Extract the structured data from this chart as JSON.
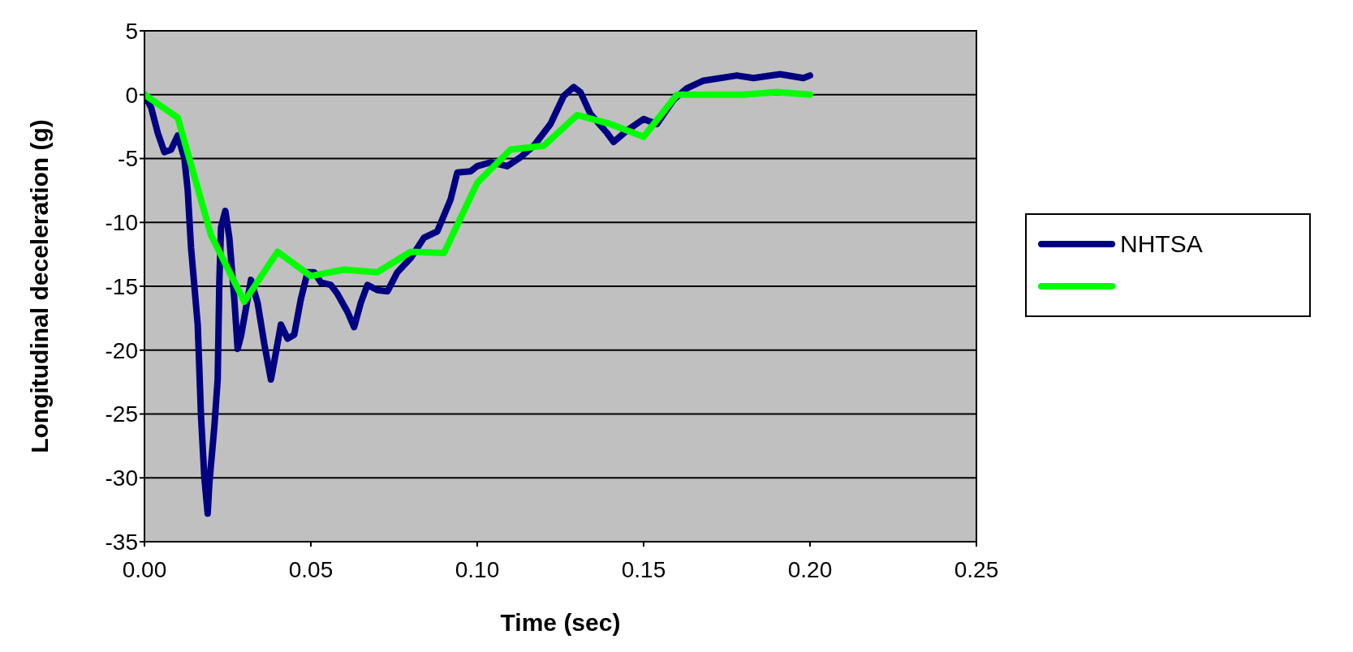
{
  "chart_data": {
    "type": "line",
    "xlabel": "Time (sec)",
    "ylabel": "Longitudinal deceleration (g)",
    "xlim": [
      0,
      0.25
    ],
    "xticks": [
      {
        "value": 0,
        "label": "0.00"
      },
      {
        "value": 0.05,
        "label": "0.05"
      },
      {
        "value": 0.1,
        "label": "0.10"
      },
      {
        "value": 0.15,
        "label": "0.15"
      },
      {
        "value": 0.2,
        "label": "0.20"
      },
      {
        "value": 0.25,
        "label": "0.25"
      }
    ],
    "ylim": [
      -35,
      5
    ],
    "yticks": [
      -35,
      -30,
      -25,
      -20,
      -15,
      -10,
      -5,
      0,
      5
    ],
    "grid": "y",
    "legend": "right",
    "marker": "none",
    "line_style": "solid",
    "series": [
      {
        "name": "NHTSA",
        "color": "#000080",
        "x": [
          0,
          0.002,
          0.004,
          0.006,
          0.008,
          0.01,
          0.012,
          0.013,
          0.014,
          0.016,
          0.017,
          0.018,
          0.019,
          0.0195,
          0.021,
          0.022,
          0.0225,
          0.023,
          0.0243,
          0.0255,
          0.027,
          0.028,
          0.029,
          0.031,
          0.032,
          0.034,
          0.036,
          0.038,
          0.039,
          0.041,
          0.043,
          0.045,
          0.047,
          0.049,
          0.051,
          0.053,
          0.056,
          0.058,
          0.061,
          0.063,
          0.065,
          0.067,
          0.07,
          0.073,
          0.076,
          0.08,
          0.084,
          0.088,
          0.092,
          0.094,
          0.098,
          0.1,
          0.104,
          0.109,
          0.113,
          0.117,
          0.122,
          0.126,
          0.129,
          0.131,
          0.134,
          0.139,
          0.141,
          0.145,
          0.15,
          0.154,
          0.159,
          0.163,
          0.168,
          0.178,
          0.183,
          0.191,
          0.198,
          0.2
        ],
        "values": [
          0,
          -1,
          -3,
          -4.5,
          -4.3,
          -3.2,
          -5,
          -7.5,
          -12,
          -18,
          -25.2,
          -30,
          -32.8,
          -30.4,
          -26,
          -22.3,
          -14.6,
          -10.4,
          -9.1,
          -11.2,
          -16,
          -19.9,
          -18.9,
          -16,
          -14.5,
          -16.3,
          -19.5,
          -22.3,
          -20.9,
          -18,
          -19.1,
          -18.8,
          -16,
          -13.9,
          -13.9,
          -14.7,
          -14.9,
          -15.6,
          -17,
          -18.2,
          -16.3,
          -14.9,
          -15.3,
          -15.4,
          -13.9,
          -12.8,
          -11.2,
          -10.7,
          -8.2,
          -6.1,
          -6,
          -5.6,
          -5.3,
          -5.6,
          -4.9,
          -4,
          -2.3,
          -0.1,
          0.6,
          0.2,
          -1.5,
          -3,
          -3.7,
          -2.8,
          -1.9,
          -2.3,
          -0.4,
          0.5,
          1.1,
          1.5,
          1.3,
          1.6,
          1.3,
          1.5
        ]
      },
      {
        "color": "#00ff00",
        "x": [
          0,
          0.01,
          0.02,
          0.03,
          0.04,
          0.05,
          0.06,
          0.07,
          0.08,
          0.09,
          0.1,
          0.11,
          0.12,
          0.13,
          0.14,
          0.15,
          0.16,
          0.17,
          0.18,
          0.19,
          0.2
        ],
        "values": [
          0,
          -1.8,
          -11,
          -16.2,
          -12.3,
          -14.2,
          -13.7,
          -13.9,
          -12.3,
          -12.4,
          -6.9,
          -4.3,
          -4,
          -1.6,
          -2.3,
          -3.3,
          0,
          0,
          0,
          0.2,
          0
        ]
      }
    ]
  }
}
